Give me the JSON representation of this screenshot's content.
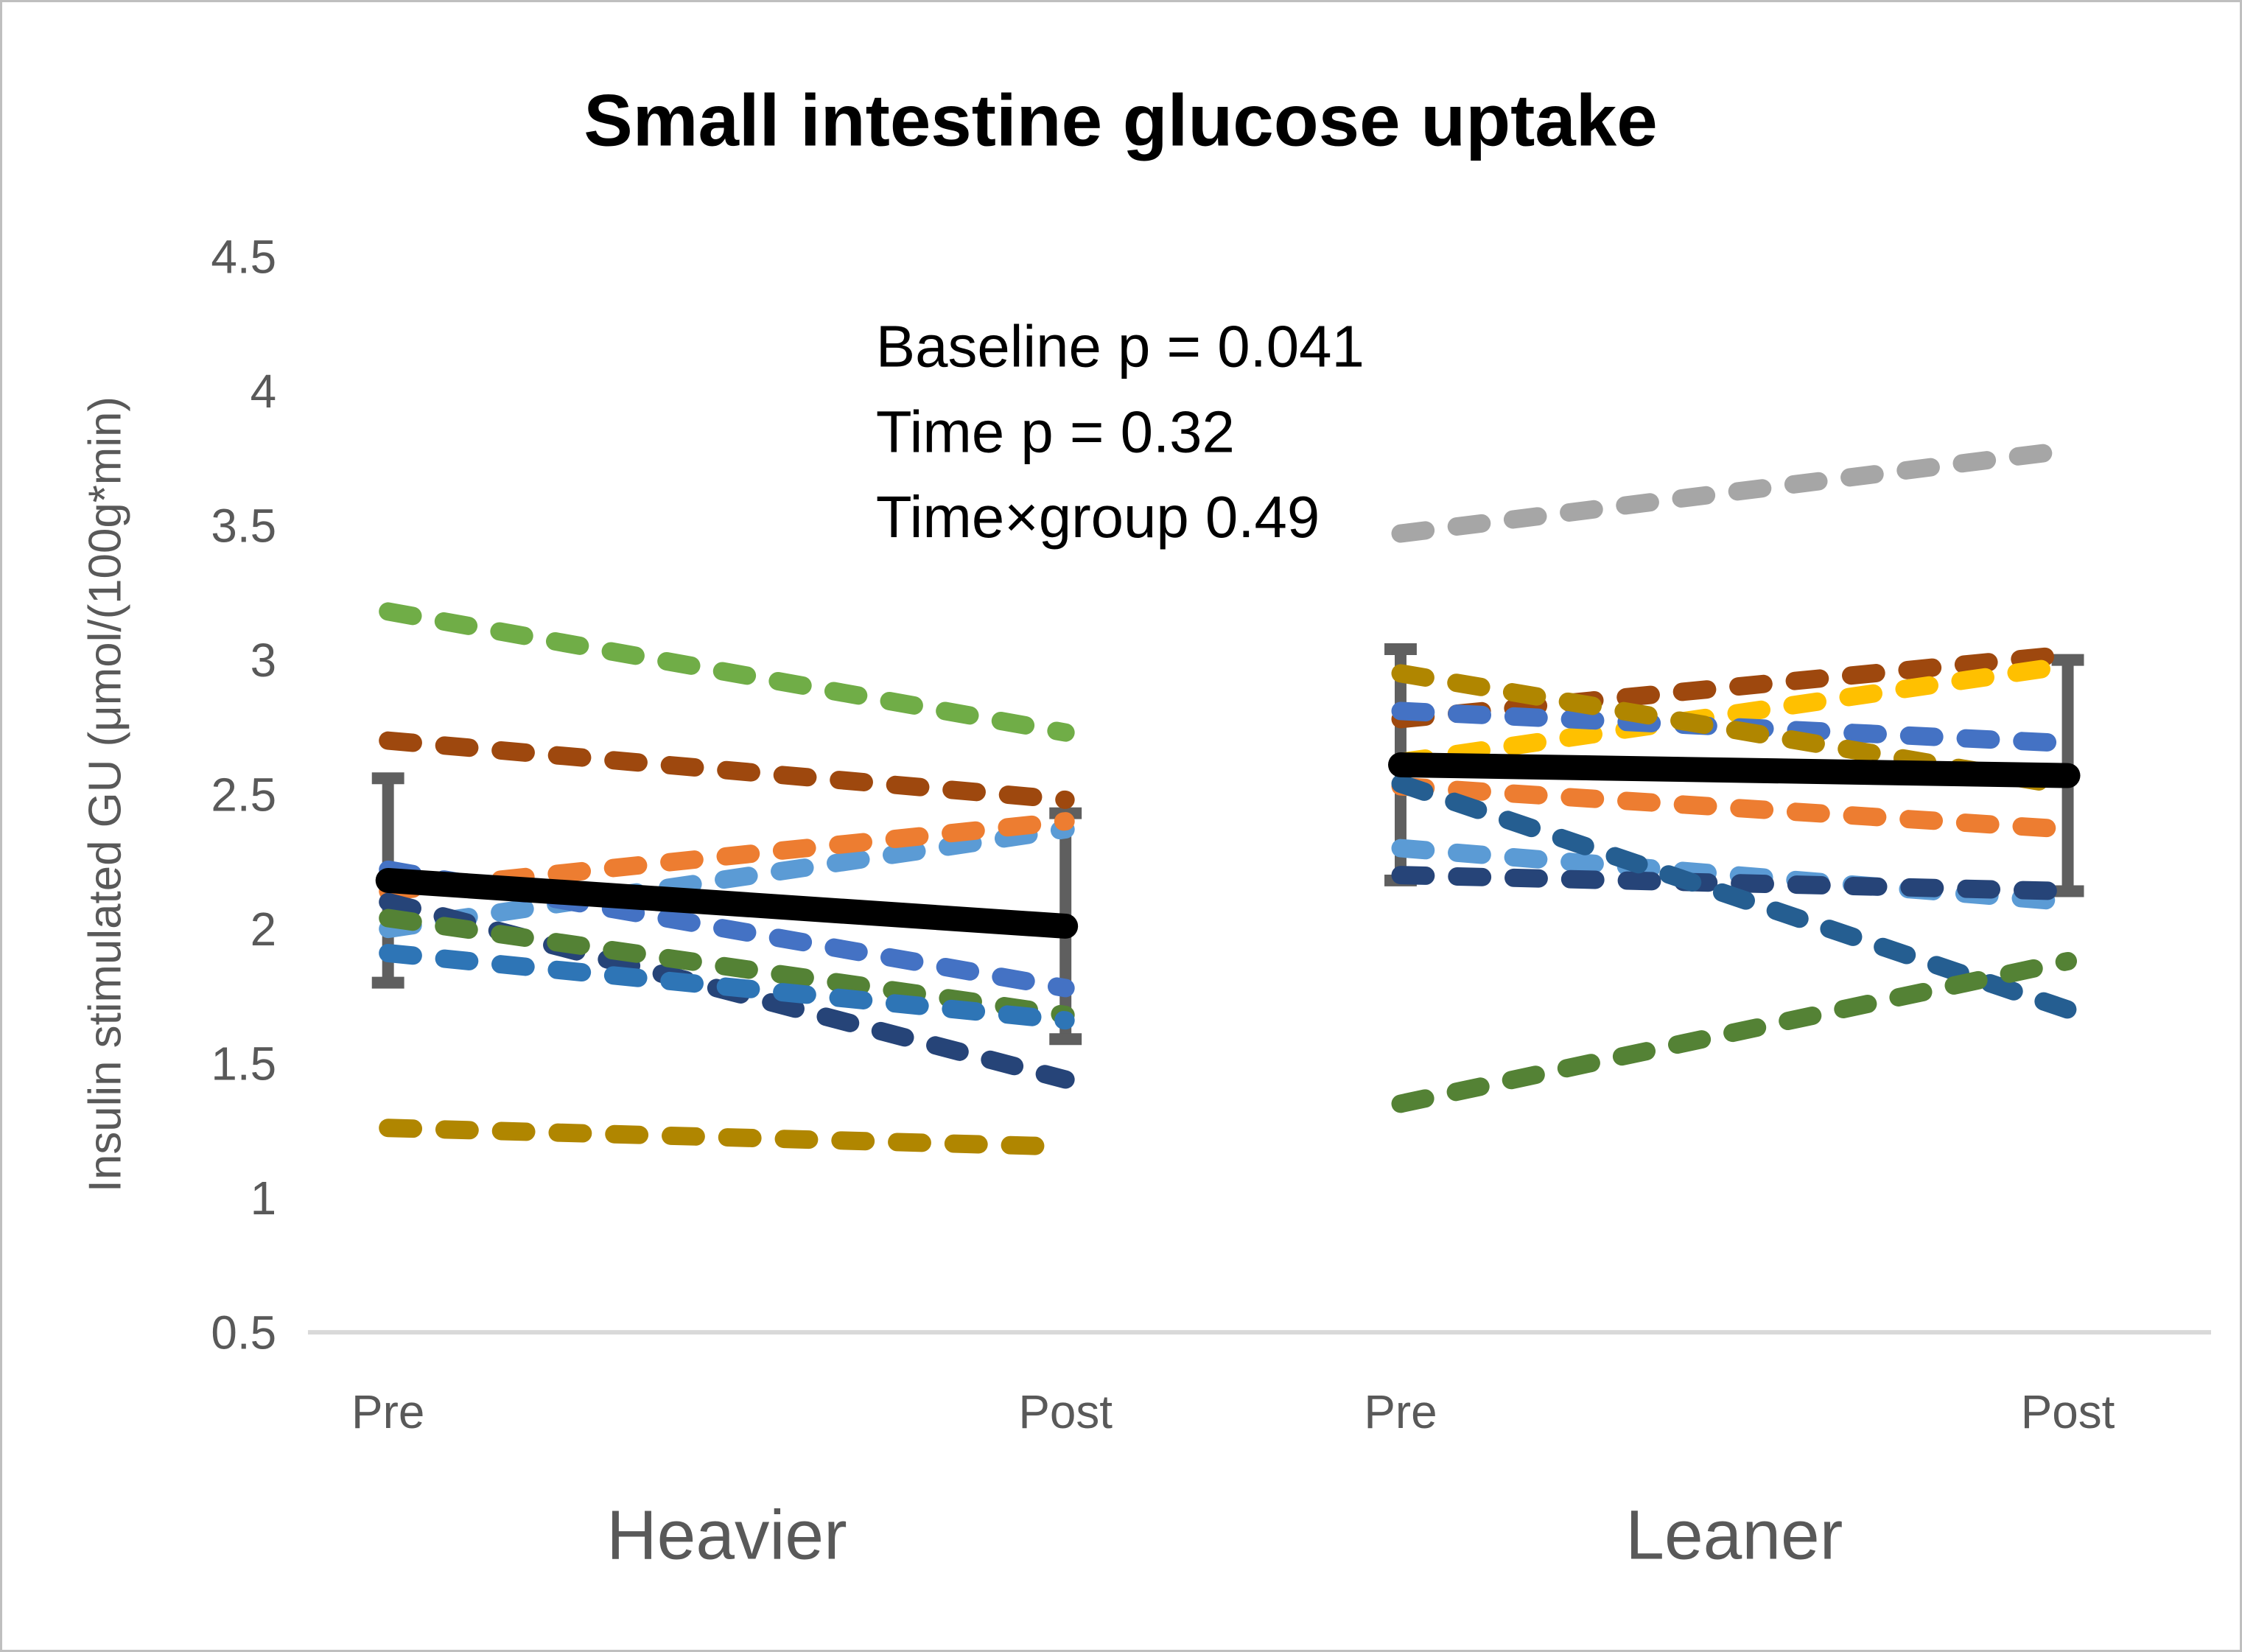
{
  "chart_data": {
    "type": "line",
    "title": "Small intestine glucose uptake",
    "ylabel": "Insulin stimulated GU (μmol/(100g*min)",
    "ylim": [
      0.5,
      4.5
    ],
    "y_ticks": [
      "0.5",
      "1",
      "1.5",
      "2",
      "2.5",
      "3",
      "3.5",
      "4",
      "4.5"
    ],
    "x_categories": [
      "Pre",
      "Post"
    ],
    "grid": false,
    "legend": false,
    "annotations": [
      "Baseline p = 0.041",
      "Time p = 0.32",
      "Time×group 0.49"
    ],
    "colors": {
      "mean_line": "#000000",
      "error_bar": "#5F5F5F",
      "axis_line": "#D9D9D9",
      "axis_text": "#595959",
      "title_text": "#000000"
    },
    "groups": [
      {
        "label": "Heavier",
        "mean": {
          "pre": 2.18,
          "post": 2.01,
          "pre_err": 0.38,
          "post_err": 0.42
        },
        "subjects": [
          {
            "color": "#70AD47",
            "pre": 3.18,
            "post": 2.73
          },
          {
            "color": "#9E480E",
            "pre": 2.7,
            "post": 2.48
          },
          {
            "color": "#5B9BD5",
            "pre": 2.0,
            "post": 2.37
          },
          {
            "color": "#ED7D31",
            "pre": 2.14,
            "post": 2.4
          },
          {
            "color": "#4472C4",
            "pre": 2.22,
            "post": 1.78
          },
          {
            "color": "#264478",
            "pre": 2.1,
            "post": 1.44
          },
          {
            "color": "#548235",
            "pre": 2.04,
            "post": 1.68
          },
          {
            "color": "#2E75B6",
            "pre": 1.91,
            "post": 1.66
          },
          {
            "color": "#B08600",
            "pre": 1.26,
            "post": 1.19
          }
        ]
      },
      {
        "label": "Leaner",
        "mean": {
          "pre": 2.61,
          "post": 2.57,
          "pre_err": 0.43,
          "post_err": 0.43
        },
        "subjects": [
          {
            "color": "#A6A6A6",
            "pre": 3.47,
            "post": 3.78
          },
          {
            "color": "#9E480E",
            "pre": 2.78,
            "post": 3.02
          },
          {
            "color": "#FFC000",
            "pre": 2.62,
            "post": 2.98
          },
          {
            "color": "#4472C4",
            "pre": 2.81,
            "post": 2.69
          },
          {
            "color": "#B08600",
            "pre": 2.95,
            "post": 2.53
          },
          {
            "color": "#ED7D31",
            "pre": 2.53,
            "post": 2.37
          },
          {
            "color": "#5B9BD5",
            "pre": 2.3,
            "post": 2.1
          },
          {
            "color": "#264478",
            "pre": 2.2,
            "post": 2.14
          },
          {
            "color": "#255E91",
            "pre": 2.54,
            "post": 1.7
          },
          {
            "color": "#548235",
            "pre": 1.35,
            "post": 1.88
          }
        ]
      }
    ]
  }
}
